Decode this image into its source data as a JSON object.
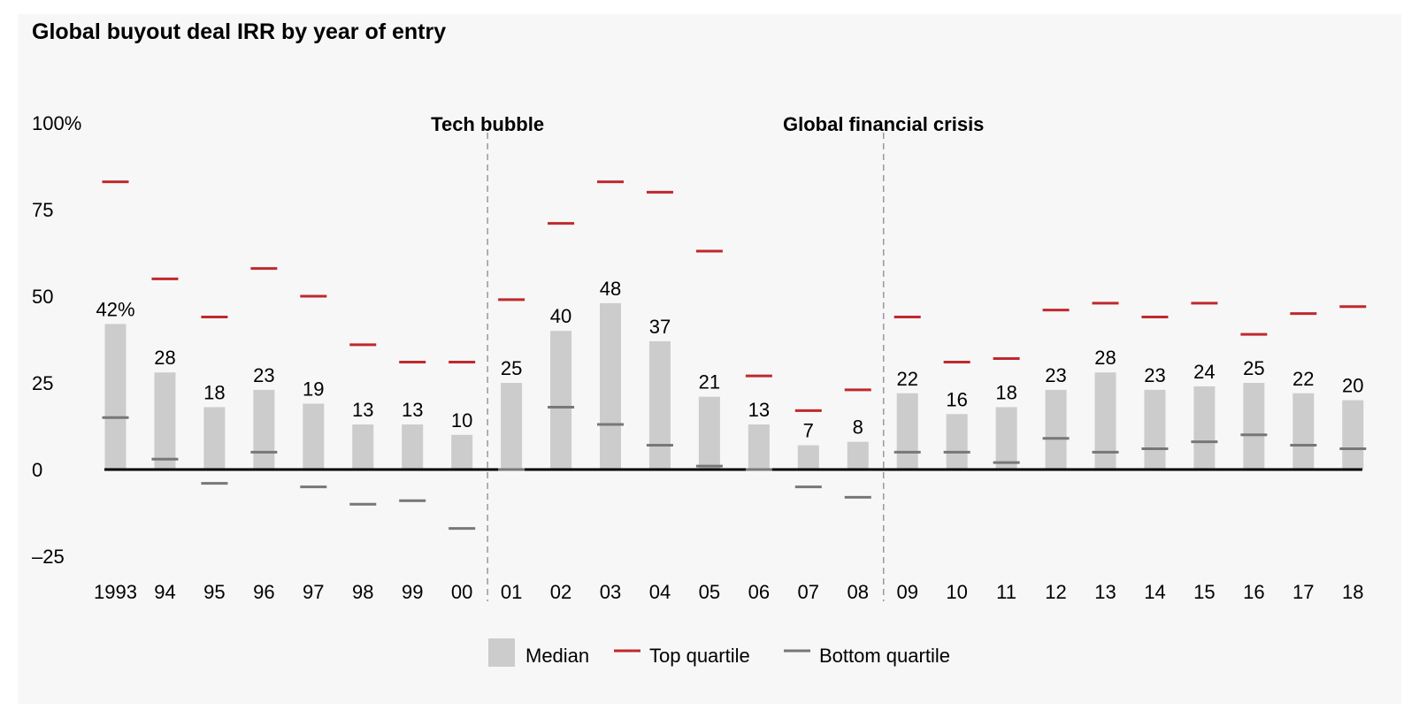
{
  "page": {
    "title": "Global buyout deal IRR by year of entry"
  },
  "chart_data": {
    "type": "bar",
    "title": "Global buyout deal IRR by year of entry",
    "xlabel": "",
    "ylabel": "",
    "ylim": [
      -25,
      100
    ],
    "yticks": [
      {
        "value": 100,
        "label": "100%"
      },
      {
        "value": 75,
        "label": "75"
      },
      {
        "value": 50,
        "label": "50"
      },
      {
        "value": 25,
        "label": "25"
      },
      {
        "value": 0,
        "label": "0"
      },
      {
        "value": -25,
        "label": "–25"
      }
    ],
    "categories": [
      "1993",
      "94",
      "95",
      "96",
      "97",
      "98",
      "99",
      "00",
      "01",
      "02",
      "03",
      "04",
      "05",
      "06",
      "07",
      "08",
      "09",
      "10",
      "11",
      "12",
      "13",
      "14",
      "15",
      "16",
      "17",
      "18"
    ],
    "data_labels": [
      "42%",
      "28",
      "18",
      "23",
      "19",
      "13",
      "13",
      "10",
      "25",
      "40",
      "48",
      "37",
      "21",
      "13",
      "7",
      "8",
      "22",
      "16",
      "18",
      "23",
      "28",
      "23",
      "24",
      "25",
      "22",
      "20"
    ],
    "series": [
      {
        "name": "Median",
        "type": "bar",
        "color": "#cccccc",
        "values": [
          42,
          28,
          18,
          23,
          19,
          13,
          13,
          10,
          25,
          40,
          48,
          37,
          21,
          13,
          7,
          8,
          22,
          16,
          18,
          23,
          28,
          23,
          24,
          25,
          22,
          20
        ]
      },
      {
        "name": "Top quartile",
        "type": "marker",
        "color": "#c0282d",
        "values": [
          83,
          55,
          44,
          58,
          50,
          36,
          31,
          31,
          49,
          71,
          83,
          80,
          63,
          27,
          17,
          23,
          44,
          31,
          32,
          46,
          48,
          44,
          48,
          39,
          45,
          47
        ]
      },
      {
        "name": "Bottom quartile",
        "type": "marker",
        "color": "#777777",
        "values": [
          15,
          3,
          -4,
          5,
          -5,
          -10,
          -9,
          -17,
          0,
          18,
          13,
          7,
          1,
          0,
          -5,
          -8,
          5,
          5,
          2,
          9,
          5,
          6,
          8,
          10,
          7,
          6
        ]
      }
    ],
    "annotations": [
      {
        "label": "Tech bubble",
        "between": [
          "00",
          "01"
        ]
      },
      {
        "label": "Global financial crisis",
        "between": [
          "08",
          "09"
        ]
      }
    ],
    "legend": {
      "position": "bottom-center",
      "items": [
        {
          "label": "Median",
          "shape": "box",
          "color": "#cccccc"
        },
        {
          "label": "Top quartile",
          "shape": "dash",
          "color": "#c0282d"
        },
        {
          "label": "Bottom quartile",
          "shape": "dash",
          "color": "#777777"
        }
      ]
    },
    "grid": false
  }
}
